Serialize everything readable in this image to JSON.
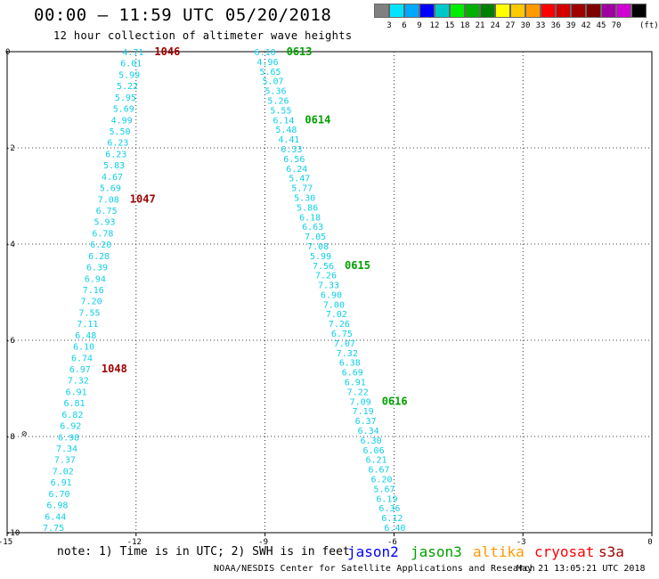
{
  "header": {
    "title": "00:00 – 11:59 UTC 05/20/2018",
    "subtitle": "12 hour collection of altimeter wave heights"
  },
  "legend": {
    "unit": "(ft)",
    "colors": [
      "#808080",
      "#00e5ff",
      "#00a8ff",
      "#0000ff",
      "#00c8c8",
      "#00ee00",
      "#00b000",
      "#008000",
      "#ffff00",
      "#ffc800",
      "#ff9a00",
      "#ff0000",
      "#d20000",
      "#a00000",
      "#800000",
      "#a000a0",
      "#d000d0",
      "#000000"
    ],
    "labels": [
      "3",
      "6",
      "9",
      "12",
      "15",
      "18",
      "21",
      "24",
      "27",
      "30",
      "33",
      "36",
      "39",
      "42",
      "45",
      "70"
    ]
  },
  "axes": {
    "x_ticks": [
      "-15",
      "-12",
      "-9",
      "-6",
      "-3",
      "0"
    ],
    "y_ticks": [
      "0",
      "-2",
      "-4",
      "-6",
      "-8",
      "-10"
    ],
    "xlim": [
      -15,
      0
    ],
    "ylim": [
      -10,
      0
    ]
  },
  "tracks": [
    {
      "satellite": "cryosat",
      "color": "#0fcfe8",
      "lon_start": -12.07,
      "lon_end": -13.92,
      "values": [
        "4.71",
        "6.01",
        "5.99",
        "5.22",
        "5.95",
        "5.69",
        "4.99",
        "5.50",
        "6.23",
        "6.23",
        "5.83",
        "4.67",
        "5.69",
        "7.08",
        "6.75",
        "5.93",
        "6.78",
        "6.20",
        "6.28",
        "6.39",
        "6.94",
        "7.16",
        "7.20",
        "7.55",
        "7.11",
        "6.48",
        "6.10",
        "6.74",
        "6.97",
        "7.32",
        "6.91",
        "6.81",
        "6.82",
        "6.92",
        "6.98",
        "7.34",
        "7.37",
        "7.02",
        "6.91",
        "6.70",
        "6.98",
        "6.44",
        "7.75"
      ],
      "times": [
        {
          "label": "1046",
          "index": 0
        },
        {
          "label": "1047",
          "index": 13
        },
        {
          "label": "1048",
          "index": 28
        }
      ]
    },
    {
      "satellite": "jason3",
      "color": "#0fcfe8",
      "lon_start": -9.0,
      "lon_end": -5.98,
      "values": [
        "6.10",
        "4.96",
        "5.65",
        "5.07",
        "5.36",
        "5.26",
        "5.55",
        "6.14",
        "5.48",
        "4.41",
        "6.33",
        "6.56",
        "6.24",
        "5.47",
        "5.77",
        "5.30",
        "5.86",
        "6.18",
        "6.63",
        "7.05",
        "7.08",
        "5.99",
        "7.56",
        "7.26",
        "7.33",
        "6.90",
        "7.00",
        "7.02",
        "7.26",
        "6.75",
        "7.07",
        "7.32",
        "6.38",
        "6.69",
        "6.91",
        "7.22",
        "7.09",
        "7.19",
        "6.37",
        "6.34",
        "6.30",
        "6.06",
        "6.21",
        "6.67",
        "6.20",
        "5.67",
        "6.19",
        "6.36",
        "6.12",
        "6.40"
      ],
      "times": [
        {
          "label": "0613",
          "index": 0
        },
        {
          "label": "0614",
          "index": 7
        },
        {
          "label": "0615",
          "index": 22
        },
        {
          "label": "0616",
          "index": 36
        }
      ]
    }
  ],
  "station": {
    "symbol": "⊘",
    "lon": -14.6,
    "lat": -7.93
  },
  "footer": {
    "note": "note: 1) Time is in UTC; 2) SWH is in feet",
    "satellites": [
      {
        "name": "jason2",
        "color": "#0000ff"
      },
      {
        "name": "jason3",
        "color": "#00a000"
      },
      {
        "name": "altika",
        "color": "#ff9900"
      },
      {
        "name": "cryosat",
        "color": "#ff0000"
      },
      {
        "name": "s3a",
        "color": "#a00000"
      }
    ],
    "credit": "NOAA/NESDIS Center for Satellite Applications and Research",
    "timestamp": "May 21 13:05:21 UTC 2018"
  }
}
